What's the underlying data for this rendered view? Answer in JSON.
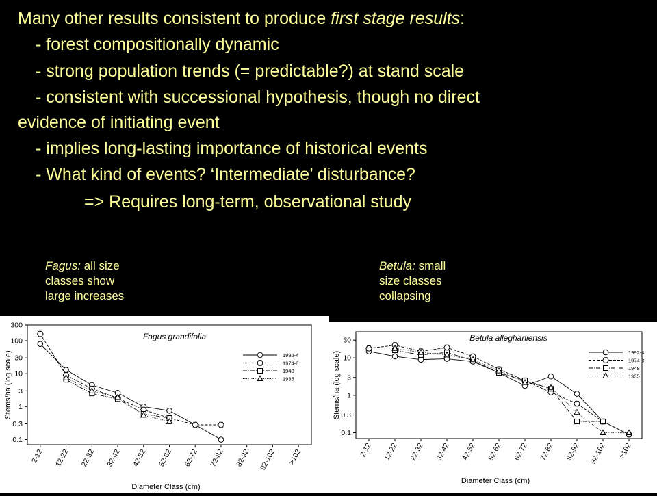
{
  "slide": {
    "line1_pre": "Many other results consistent to produce ",
    "line1_em": "first stage results",
    "line1_post": ":",
    "bullet1": "- forest compositionally dynamic",
    "bullet2": "- strong population trends (= predictable?) at stand scale",
    "bullet3a": "- consistent with successional hypothesis, though no direct",
    "bullet3b": "evidence of initiating event",
    "bullet4": "- implies long-lasting importance of historical events",
    "bullet5": "- What kind of events? ‘Intermediate’ disturbance?",
    "conclusion": "=> Requires long-term, observational study"
  },
  "captions": {
    "left_species": "Fagus:",
    "left_text1": " all size",
    "left_text2": "classes show",
    "left_text3": "large increases",
    "right_species": "Betula:",
    "right_text1": " small",
    "right_text2": "size classes",
    "right_text3": "collapsing"
  },
  "colors": {
    "background": "#000000",
    "text": "#ffff99",
    "plot": "#000000"
  },
  "chart_data": [
    {
      "type": "line",
      "title": "Fagus grandifolia",
      "xlabel": "Diameter Class (cm)",
      "ylabel": "Stems/ha (log scale)",
      "yscale": "log",
      "ylim": [
        0.07,
        300
      ],
      "yticks": [
        0.1,
        0.3,
        1,
        3,
        10,
        30,
        100,
        300
      ],
      "ytick_labels": [
        "0.1",
        "0.3",
        "1",
        "3",
        "10",
        "30",
        "100",
        "300"
      ],
      "categories": [
        "2-12",
        "12-22",
        "22-32",
        "32-42",
        "42-52",
        "52-62",
        "62-72",
        "72-82",
        "82-92",
        "92-102",
        ">102"
      ],
      "legend_position": "top-right",
      "series": [
        {
          "name": "1992-4",
          "marker": "circle",
          "dash": "",
          "values": [
            80,
            13,
            4.5,
            2.6,
            1.0,
            0.75,
            0.28,
            0.1,
            null,
            null,
            null
          ]
        },
        {
          "name": "1974-8",
          "marker": "hexagon",
          "dash": "4,2",
          "values": [
            160,
            9,
            3.5,
            1.8,
            0.8,
            0.45,
            0.28,
            0.28,
            null,
            null,
            null
          ]
        },
        {
          "name": "1948",
          "marker": "square",
          "dash": "6,2,1,2",
          "values": [
            null,
            6.5,
            2.5,
            1.7,
            0.6,
            0.45,
            null,
            null,
            null,
            null,
            null
          ]
        },
        {
          "name": "1935",
          "marker": "triangle",
          "dash": "1,1.5",
          "values": [
            null,
            7.5,
            3,
            1.9,
            0.55,
            0.35,
            null,
            null,
            null,
            null,
            null
          ]
        }
      ]
    },
    {
      "type": "line",
      "title": "Betula alleghaniensis",
      "xlabel": "Diameter Class (cm)",
      "ylabel": "Stems/ha (log scale)",
      "yscale": "log",
      "ylim": [
        0.07,
        50
      ],
      "yticks": [
        0.1,
        0.3,
        1,
        3,
        10,
        30
      ],
      "ytick_labels": [
        "0.1",
        "0.3",
        "1",
        "3",
        "10",
        "30"
      ],
      "categories": [
        "2-12",
        "12-22",
        "22-32",
        "32-42",
        "42-52",
        "52-62",
        "62-72",
        "72-82",
        "82-92",
        "92-102",
        ">102"
      ],
      "legend_position": "top-right",
      "series": [
        {
          "name": "1992-4",
          "marker": "circle",
          "dash": "",
          "values": [
            15,
            11,
            9,
            9.5,
            8,
            4,
            1.8,
            3.2,
            1.1,
            0.2,
            0.09
          ]
        },
        {
          "name": "1974-8",
          "marker": "hexagon",
          "dash": "4,2",
          "values": [
            18,
            22,
            15,
            19,
            11,
            5,
            2.5,
            1.2,
            0.6,
            0.2,
            0.09
          ]
        },
        {
          "name": "1948",
          "marker": "square",
          "dash": "6,2,1,2",
          "values": [
            null,
            16,
            12,
            14,
            8.5,
            4,
            2.5,
            1.5,
            0.2,
            0.2,
            null
          ]
        },
        {
          "name": "1935",
          "marker": "triangle",
          "dash": "1,1.5",
          "values": [
            null,
            18,
            14,
            12,
            9,
            4.5,
            2.2,
            1.6,
            0.35,
            0.1,
            0.1
          ]
        }
      ]
    }
  ]
}
